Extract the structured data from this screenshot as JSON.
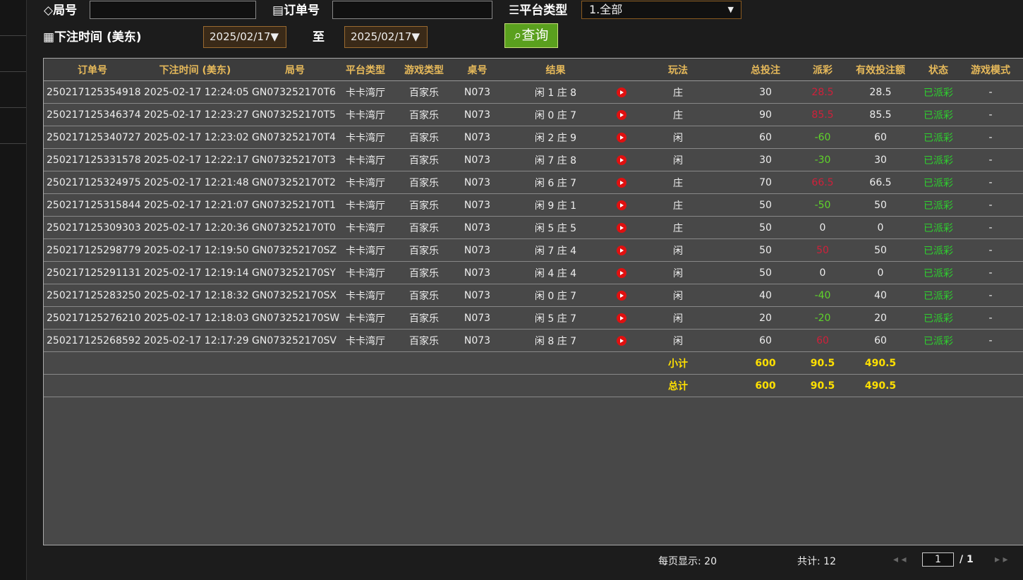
{
  "filters": {
    "round_label": "局号",
    "order_label": "订单号",
    "platform_label": "平台类型",
    "platform_value": "1.全部",
    "time_label": "下注时间 (美东)",
    "date_from": "2025/02/17",
    "to_label": "至",
    "date_to": "2025/02/17",
    "search_button": "查询"
  },
  "table": {
    "headers": [
      "订单号",
      "下注时间 (美东)",
      "局号",
      "平台类型",
      "游戏类型",
      "桌号",
      "结果",
      "玩法",
      "总投注",
      "派彩",
      "有效投注额",
      "状态",
      "游戏模式"
    ],
    "rows": [
      [
        "250217125354918",
        "2025-02-17 12:24:05",
        "GN073252170T6",
        "卡卡湾厅",
        "百家乐",
        "N073",
        "闲 1 庄 8",
        "庄",
        "30",
        "28.5",
        "28.5",
        "已派彩",
        "-"
      ],
      [
        "250217125346374",
        "2025-02-17 12:23:27",
        "GN073252170T5",
        "卡卡湾厅",
        "百家乐",
        "N073",
        "闲 0 庄 7",
        "庄",
        "90",
        "85.5",
        "85.5",
        "已派彩",
        "-"
      ],
      [
        "250217125340727",
        "2025-02-17 12:23:02",
        "GN073252170T4",
        "卡卡湾厅",
        "百家乐",
        "N073",
        "闲 2 庄 9",
        "闲",
        "60",
        "-60",
        "60",
        "已派彩",
        "-"
      ],
      [
        "250217125331578",
        "2025-02-17 12:22:17",
        "GN073252170T3",
        "卡卡湾厅",
        "百家乐",
        "N073",
        "闲 7 庄 8",
        "闲",
        "30",
        "-30",
        "30",
        "已派彩",
        "-"
      ],
      [
        "250217125324975",
        "2025-02-17 12:21:48",
        "GN073252170T2",
        "卡卡湾厅",
        "百家乐",
        "N073",
        "闲 6 庄 7",
        "庄",
        "70",
        "66.5",
        "66.5",
        "已派彩",
        "-"
      ],
      [
        "250217125315844",
        "2025-02-17 12:21:07",
        "GN073252170T1",
        "卡卡湾厅",
        "百家乐",
        "N073",
        "闲 9 庄 1",
        "庄",
        "50",
        "-50",
        "50",
        "已派彩",
        "-"
      ],
      [
        "250217125309303",
        "2025-02-17 12:20:36",
        "GN073252170T0",
        "卡卡湾厅",
        "百家乐",
        "N073",
        "闲 5 庄 5",
        "庄",
        "50",
        "0",
        "0",
        "已派彩",
        "-"
      ],
      [
        "250217125298779",
        "2025-02-17 12:19:50",
        "GN073252170SZ",
        "卡卡湾厅",
        "百家乐",
        "N073",
        "闲 7 庄 4",
        "闲",
        "50",
        "50",
        "50",
        "已派彩",
        "-"
      ],
      [
        "250217125291131",
        "2025-02-17 12:19:14",
        "GN073252170SY",
        "卡卡湾厅",
        "百家乐",
        "N073",
        "闲 4 庄 4",
        "闲",
        "50",
        "0",
        "0",
        "已派彩",
        "-"
      ],
      [
        "250217125283250",
        "2025-02-17 12:18:32",
        "GN073252170SX",
        "卡卡湾厅",
        "百家乐",
        "N073",
        "闲 0 庄 7",
        "闲",
        "40",
        "-40",
        "40",
        "已派彩",
        "-"
      ],
      [
        "250217125276210",
        "2025-02-17 12:18:03",
        "GN073252170SW",
        "卡卡湾厅",
        "百家乐",
        "N073",
        "闲 5 庄 7",
        "闲",
        "20",
        "-20",
        "20",
        "已派彩",
        "-"
      ],
      [
        "250217125268592",
        "2025-02-17 12:17:29",
        "GN073252170SV",
        "卡卡湾厅",
        "百家乐",
        "N073",
        "闲 8 庄 7",
        "闲",
        "60",
        "60",
        "60",
        "已派彩",
        "-"
      ]
    ],
    "summary": [
      {
        "label": "小计",
        "bet": "600",
        "payout": "90.5",
        "valid": "490.5"
      },
      {
        "label": "总计",
        "bet": "600",
        "payout": "90.5",
        "valid": "490.5"
      }
    ]
  },
  "footer": {
    "page_size": "每页显示: 20",
    "total": "共计: 12",
    "current_page": "1",
    "page_count": "/ 1"
  }
}
